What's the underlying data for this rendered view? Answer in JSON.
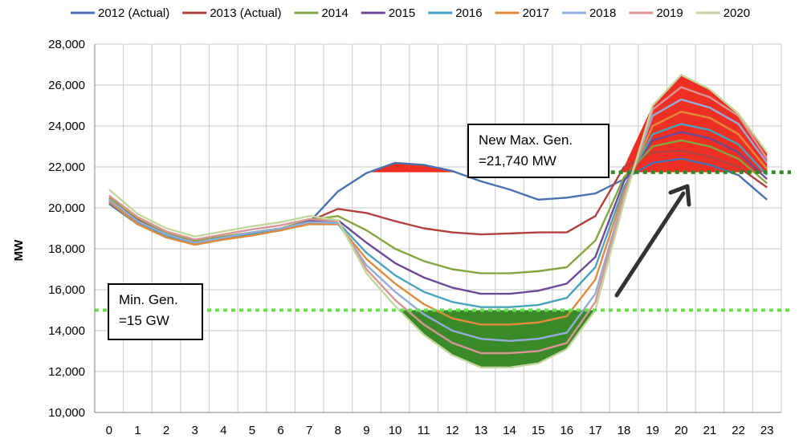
{
  "chart_data": {
    "type": "line",
    "title": "",
    "xlabel": "",
    "ylabel": "MW",
    "ylim": [
      10000,
      28000
    ],
    "yticks": [
      10000,
      12000,
      14000,
      16000,
      18000,
      20000,
      22000,
      24000,
      26000,
      28000
    ],
    "ytick_labels": [
      "10,000",
      "12,000",
      "14,000",
      "16,000",
      "18,000",
      "20,000",
      "22,000",
      "24,000",
      "26,000",
      "28,000"
    ],
    "x": [
      0,
      1,
      2,
      3,
      4,
      5,
      6,
      7,
      8,
      9,
      10,
      11,
      12,
      13,
      14,
      15,
      16,
      17,
      18,
      19,
      20,
      21,
      22,
      23
    ],
    "xtick_labels": [
      "0",
      "1",
      "2",
      "3",
      "4",
      "5",
      "6",
      "7",
      "8",
      "9",
      "10",
      "11",
      "12",
      "13",
      "14",
      "15",
      "16",
      "17",
      "18",
      "19",
      "20",
      "21",
      "22",
      "23"
    ],
    "grid": true,
    "legend_position": "top",
    "series": [
      {
        "name": "2012 (Actual)",
        "color": "#4a72b0",
        "values": [
          20200,
          19200,
          18600,
          18250,
          18500,
          18700,
          18900,
          19300,
          20800,
          21700,
          22200,
          22100,
          21800,
          21300,
          20900,
          20400,
          20500,
          20700,
          21400,
          22200,
          22400,
          22100,
          21600,
          20400
        ]
      },
      {
        "name": "2013 (Actual)",
        "color": "#b0413e",
        "values": [
          20400,
          19400,
          18700,
          18350,
          18550,
          18750,
          18950,
          19350,
          19950,
          19750,
          19350,
          19000,
          18800,
          18700,
          18750,
          18800,
          18800,
          19600,
          22000,
          22700,
          22800,
          22500,
          22000,
          21000
        ]
      },
      {
        "name": "2014",
        "color": "#86a541",
        "values": [
          20500,
          19500,
          18800,
          18400,
          18600,
          18800,
          19000,
          19400,
          19600,
          18900,
          18000,
          17400,
          17000,
          16800,
          16800,
          16900,
          17100,
          18400,
          21500,
          23000,
          23300,
          23000,
          22400,
          21200
        ]
      },
      {
        "name": "2015",
        "color": "#6d4a97",
        "values": [
          20300,
          19300,
          18650,
          18300,
          18550,
          18750,
          18950,
          19350,
          19400,
          18300,
          17300,
          16600,
          16100,
          15800,
          15800,
          15950,
          16300,
          17600,
          21300,
          23300,
          23700,
          23400,
          22700,
          21400
        ]
      },
      {
        "name": "2016",
        "color": "#4aa3be",
        "values": [
          20300,
          19250,
          18600,
          18200,
          18450,
          18700,
          18900,
          19250,
          19300,
          17800,
          16700,
          15900,
          15400,
          15150,
          15150,
          15250,
          15600,
          17100,
          21000,
          23600,
          24100,
          23800,
          23100,
          21600
        ]
      },
      {
        "name": "2017",
        "color": "#e08a3c",
        "values": [
          20300,
          19200,
          18550,
          18200,
          18450,
          18650,
          18900,
          19200,
          19200,
          17500,
          16300,
          15300,
          14600,
          14300,
          14300,
          14400,
          14700,
          16500,
          20800,
          24000,
          24700,
          24400,
          23600,
          21900
        ]
      },
      {
        "name": "2018",
        "color": "#94acd9",
        "values": [
          20400,
          19350,
          18700,
          18300,
          18550,
          18800,
          19000,
          19300,
          19250,
          17200,
          15900,
          14800,
          14000,
          13600,
          13500,
          13600,
          13900,
          15800,
          20600,
          24500,
          25300,
          24900,
          24100,
          22200
        ]
      },
      {
        "name": "2019",
        "color": "#d99594",
        "values": [
          20600,
          19550,
          18850,
          18450,
          18700,
          18950,
          19150,
          19450,
          19350,
          17000,
          15500,
          14300,
          13400,
          12900,
          12900,
          13000,
          13400,
          15400,
          20500,
          24800,
          25900,
          25400,
          24500,
          22400
        ]
      },
      {
        "name": "2020",
        "color": "#c3d69b",
        "values": [
          20900,
          19700,
          19000,
          18600,
          18850,
          19100,
          19300,
          19600,
          19400,
          16800,
          15200,
          13800,
          12800,
          12200,
          12200,
          12400,
          13100,
          15000,
          20300,
          25000,
          26500,
          25800,
          24600,
          22700
        ]
      }
    ],
    "reference_lines": [
      {
        "y": 15000,
        "color": "#66e04a"
      },
      {
        "y": 21740,
        "color": "#2e8b22"
      }
    ],
    "annotations": [
      {
        "lines": [
          "New Max. Gen.",
          "=21,740 MW"
        ]
      },
      {
        "lines": [
          "Min. Gen.",
          "=15 GW"
        ]
      }
    ],
    "fills": {
      "over_max_color": "#ee3024",
      "under_min_color": "#3a8a2a",
      "arrow_color": "#333333"
    }
  }
}
